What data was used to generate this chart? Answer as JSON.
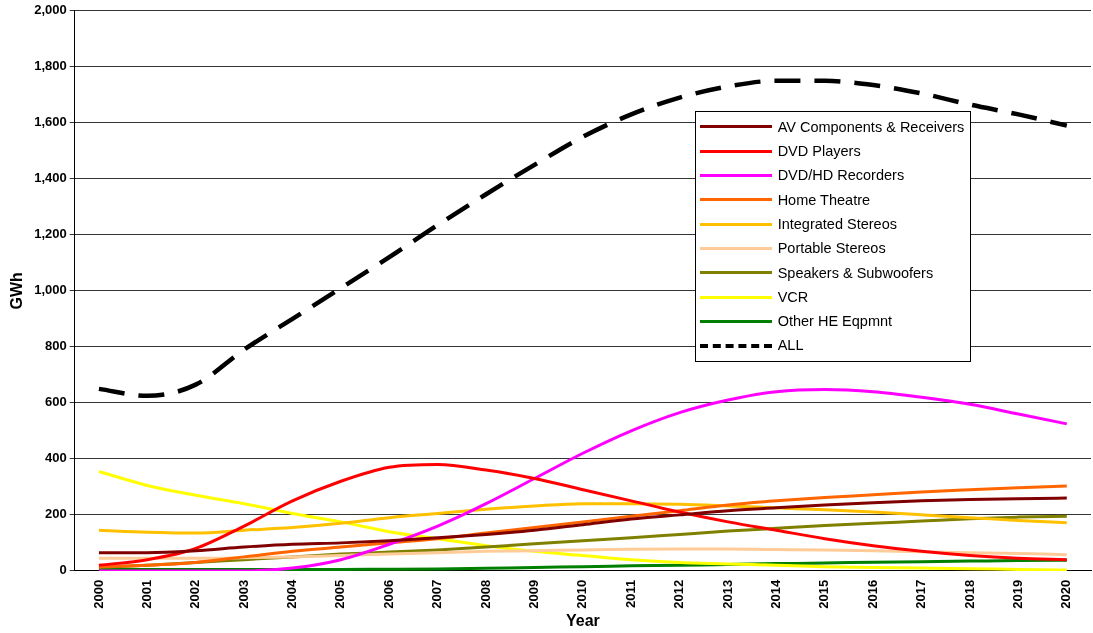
{
  "chart_data": {
    "type": "line",
    "xlabel": "Year",
    "ylabel": "GWh",
    "categories": [
      "2000",
      "2001",
      "2002",
      "2003",
      "2004",
      "2005",
      "2006",
      "2007",
      "2008",
      "2009",
      "2010",
      "2011",
      "2012",
      "2013",
      "2014",
      "2015",
      "2016",
      "2017",
      "2018",
      "2019",
      "2020"
    ],
    "ylim": [
      0,
      2000
    ],
    "yticks": [
      {
        "value": 0,
        "label": "0"
      },
      {
        "value": 200,
        "label": "200"
      },
      {
        "value": 400,
        "label": "400"
      },
      {
        "value": 600,
        "label": "600"
      },
      {
        "value": 800,
        "label": "800"
      },
      {
        "value": 1000,
        "label": "1,000"
      },
      {
        "value": 1200,
        "label": "1,200"
      },
      {
        "value": 1400,
        "label": "1,400"
      },
      {
        "value": 1600,
        "label": "1,600"
      },
      {
        "value": 1800,
        "label": "1,800"
      },
      {
        "value": 2000,
        "label": "2,000"
      }
    ],
    "grid": "y",
    "legend": "top right",
    "marker": "none",
    "series": [
      {
        "name": "AV Components & Receivers",
        "color": "#800000",
        "values": [
          65,
          65,
          72,
          85,
          95,
          100,
          108,
          118,
          130,
          145,
          165,
          185,
          200,
          215,
          225,
          235,
          243,
          250,
          255,
          258,
          260
        ]
      },
      {
        "name": "DVD Players",
        "color": "#ff0000",
        "values": [
          20,
          40,
          80,
          160,
          250,
          320,
          370,
          380,
          360,
          330,
          290,
          250,
          210,
          175,
          145,
          115,
          90,
          70,
          55,
          45,
          40
        ]
      },
      {
        "name": "DVD/HD Recorders",
        "color": "#ff00ff",
        "values": [
          0,
          0,
          0,
          0,
          10,
          40,
          95,
          160,
          240,
          330,
          420,
          500,
          565,
          610,
          640,
          648,
          640,
          620,
          595,
          560,
          525
        ]
      },
      {
        "name": "Home Theatre",
        "color": "#ff6600",
        "values": [
          15,
          20,
          30,
          50,
          70,
          85,
          100,
          115,
          135,
          155,
          175,
          195,
          215,
          235,
          250,
          262,
          272,
          282,
          290,
          297,
          303
        ]
      },
      {
        "name": "Integrated Stereos",
        "color": "#ffc000",
        "values": [
          145,
          138,
          135,
          145,
          155,
          170,
          190,
          205,
          220,
          232,
          240,
          240,
          238,
          232,
          225,
          218,
          210,
          200,
          190,
          180,
          172
        ]
      },
      {
        "name": "Portable Stereos",
        "color": "#ffcc99",
        "values": [
          45,
          45,
          45,
          47,
          50,
          55,
          60,
          65,
          70,
          72,
          75,
          77,
          78,
          78,
          76,
          75,
          72,
          68,
          65,
          62,
          58
        ]
      },
      {
        "name": "Speakers & Subwoofers",
        "color": "#808000",
        "values": [
          12,
          20,
          30,
          40,
          50,
          60,
          67,
          75,
          85,
          97,
          108,
          118,
          130,
          142,
          152,
          162,
          170,
          178,
          186,
          192,
          195
        ]
      },
      {
        "name": "VCR",
        "color": "#ffff00",
        "values": [
          355,
          305,
          270,
          240,
          205,
          175,
          140,
          115,
          90,
          70,
          55,
          40,
          30,
          25,
          20,
          15,
          12,
          10,
          8,
          5,
          3
        ]
      },
      {
        "name": "Other HE Eqpmnt",
        "color": "#008000",
        "values": [
          5,
          5,
          5,
          5,
          5,
          5,
          6,
          7,
          9,
          12,
          15,
          18,
          20,
          23,
          26,
          28,
          31,
          33,
          35,
          37,
          38
        ]
      },
      {
        "name": "ALL",
        "color": "#000000",
        "line_style": "dashed",
        "values": [
          650,
          625,
          665,
          790,
          900,
          1010,
          1120,
          1235,
          1345,
          1450,
          1550,
          1630,
          1690,
          1730,
          1750,
          1750,
          1735,
          1705,
          1665,
          1630,
          1590
        ]
      }
    ]
  }
}
